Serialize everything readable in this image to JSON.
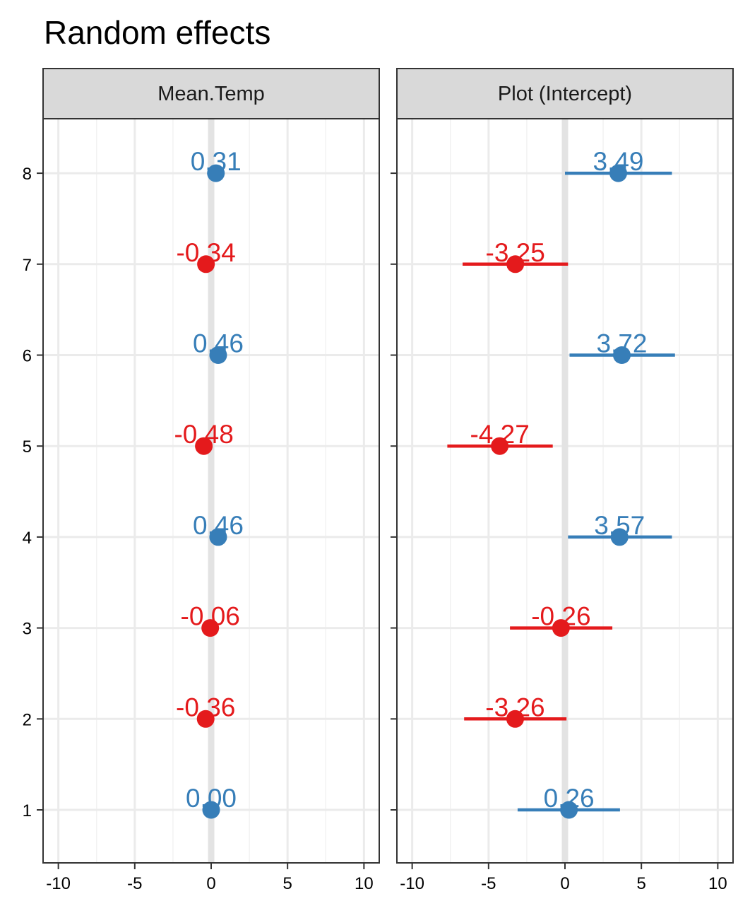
{
  "chart_data": {
    "type": "forest",
    "title": "Random effects",
    "xlim": [
      -11,
      11
    ],
    "x_ticks": [
      -10,
      -5,
      0,
      5,
      10
    ],
    "x_tick_labels": [
      "-10",
      "-5",
      "0",
      "5",
      "10"
    ],
    "y_categories": [
      "1",
      "2",
      "3",
      "4",
      "5",
      "6",
      "7",
      "8"
    ],
    "grid": true,
    "positive_color": "#377EB8",
    "negative_color": "#E41A1C",
    "facets": [
      {
        "name": "Mean.Temp",
        "points": [
          {
            "group": "1",
            "estimate": 0.0,
            "lower": -0.3,
            "upper": 0.3,
            "label": "0.00"
          },
          {
            "group": "2",
            "estimate": -0.36,
            "lower": -0.5,
            "upper": -0.2,
            "label": "-0.36"
          },
          {
            "group": "3",
            "estimate": -0.06,
            "lower": -0.2,
            "upper": 0.1,
            "label": "-0.06"
          },
          {
            "group": "4",
            "estimate": 0.46,
            "lower": 0.3,
            "upper": 0.6,
            "label": "0.46"
          },
          {
            "group": "5",
            "estimate": -0.48,
            "lower": -0.6,
            "upper": -0.3,
            "label": "-0.48"
          },
          {
            "group": "6",
            "estimate": 0.46,
            "lower": 0.3,
            "upper": 0.6,
            "label": "0.46"
          },
          {
            "group": "7",
            "estimate": -0.34,
            "lower": -0.5,
            "upper": -0.2,
            "label": "-0.34"
          },
          {
            "group": "8",
            "estimate": 0.31,
            "lower": 0.1,
            "upper": 0.5,
            "label": "0.31"
          }
        ]
      },
      {
        "name": "Plot (Intercept)",
        "points": [
          {
            "group": "1",
            "estimate": 0.26,
            "lower": -3.1,
            "upper": 3.6,
            "label": "0.26"
          },
          {
            "group": "2",
            "estimate": -3.26,
            "lower": -6.6,
            "upper": 0.1,
            "label": "-3.26"
          },
          {
            "group": "3",
            "estimate": -0.26,
            "lower": -3.6,
            "upper": 3.1,
            "label": "-0.26"
          },
          {
            "group": "4",
            "estimate": 3.57,
            "lower": 0.2,
            "upper": 7.0,
            "label": "3.57"
          },
          {
            "group": "5",
            "estimate": -4.27,
            "lower": -7.7,
            "upper": -0.8,
            "label": "-4.27"
          },
          {
            "group": "6",
            "estimate": 3.72,
            "lower": 0.3,
            "upper": 7.2,
            "label": "3.72"
          },
          {
            "group": "7",
            "estimate": -3.25,
            "lower": -6.7,
            "upper": 0.2,
            "label": "-3.25"
          },
          {
            "group": "8",
            "estimate": 3.49,
            "lower": 0.0,
            "upper": 7.0,
            "label": "3.49"
          }
        ]
      }
    ]
  }
}
